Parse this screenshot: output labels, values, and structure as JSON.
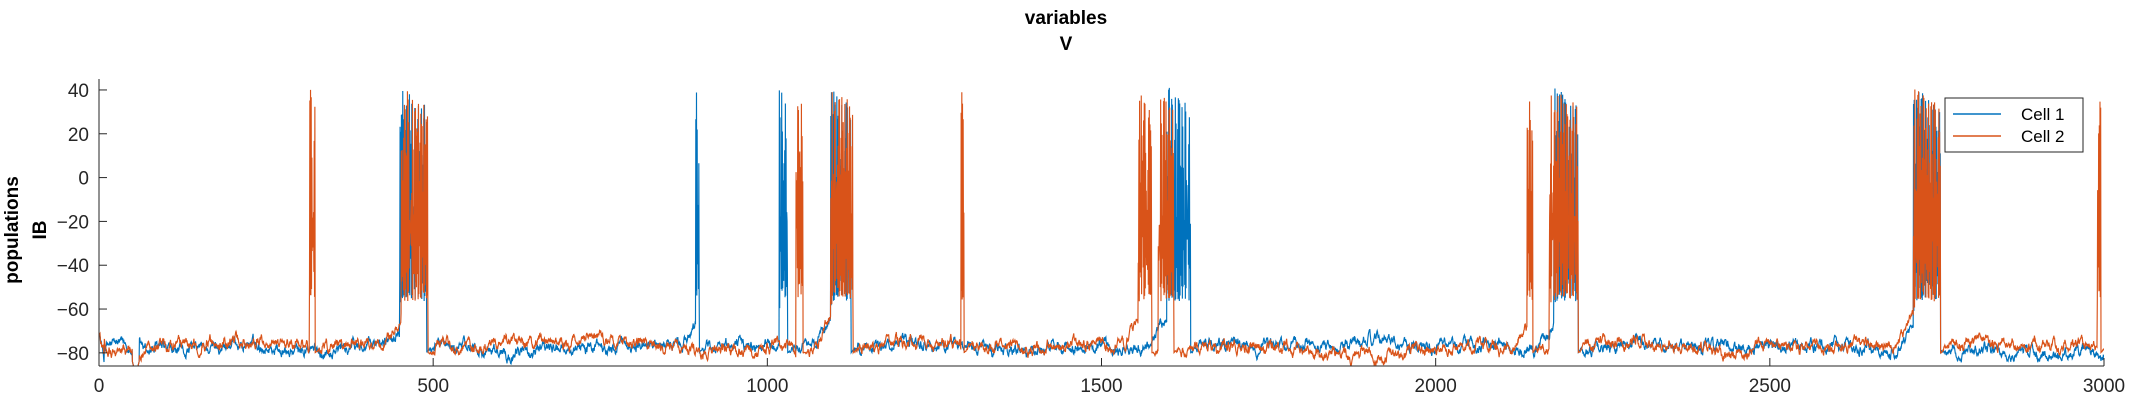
{
  "chart_data": {
    "type": "line",
    "title": [
      "variables",
      "V"
    ],
    "ylabel": [
      "populations",
      "IB"
    ],
    "xlabel": "",
    "xlim": [
      0,
      3000
    ],
    "ylim": [
      -86,
      45
    ],
    "xticks": [
      0,
      500,
      1000,
      1500,
      2000,
      2500,
      3000
    ],
    "yticks": [
      -80,
      -60,
      -40,
      -20,
      0,
      20,
      40
    ],
    "grid": false,
    "legend_position": "top-right",
    "baseline": -77,
    "spike_peak": 40,
    "plateau": -55,
    "series": [
      {
        "name": "Cell 1",
        "color": "#0072BD",
        "bursts": [
          [
            450,
            490
          ],
          [
            893,
            898
          ],
          [
            1018,
            1030
          ],
          [
            1095,
            1125
          ],
          [
            1598,
            1633
          ],
          [
            2177,
            2213
          ],
          [
            2715,
            2755
          ]
        ],
        "ramps": [
          [
            420,
            450,
            -66
          ],
          [
            860,
            893,
            -68
          ],
          [
            1070,
            1095,
            -62
          ],
          [
            1570,
            1598,
            -60
          ],
          [
            2150,
            2177,
            -64
          ],
          [
            2690,
            2715,
            -62
          ]
        ],
        "notch": [
          50,
          60
        ]
      },
      {
        "name": "Cell 2",
        "color": "#D95319",
        "bursts": [
          [
            315,
            323
          ],
          [
            452,
            492
          ],
          [
            1043,
            1053
          ],
          [
            1095,
            1128
          ],
          [
            1290,
            1294
          ],
          [
            1555,
            1575
          ],
          [
            1585,
            1608
          ],
          [
            2137,
            2145
          ],
          [
            2170,
            2213
          ],
          [
            2715,
            2755
          ],
          [
            2990,
            2995
          ]
        ],
        "ramps": [
          [
            420,
            452,
            -64
          ],
          [
            1070,
            1095,
            -62
          ],
          [
            1530,
            1555,
            -66
          ],
          [
            2120,
            2137,
            -68
          ],
          [
            2690,
            2715,
            -62
          ]
        ],
        "notch": [
          50,
          60
        ]
      }
    ]
  }
}
